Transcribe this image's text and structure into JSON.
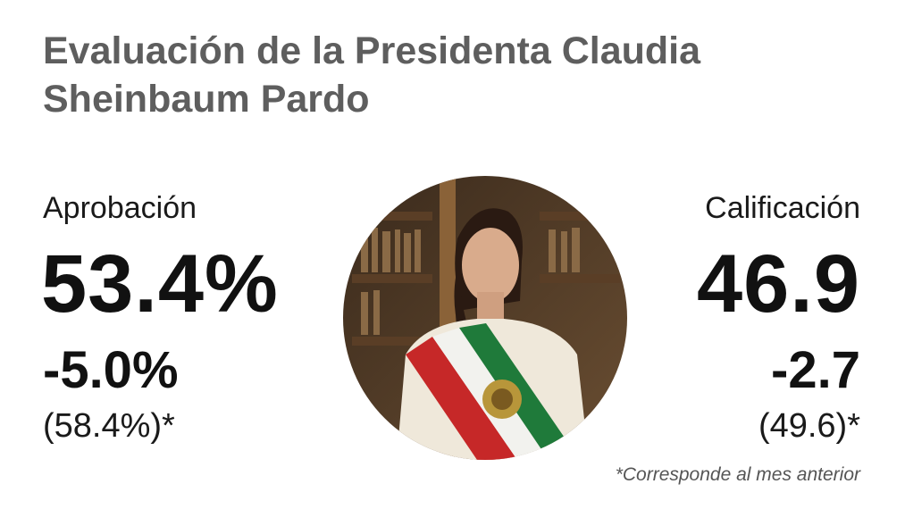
{
  "title": "Evaluación de la Presidenta Claudia Sheinbaum Pardo",
  "approval": {
    "label": "Aprobación",
    "value": "53.4%",
    "change": "-5.0%",
    "previous": "(58.4%)*"
  },
  "rating": {
    "label": "Calificación",
    "value": "46.9",
    "change": "-2.7",
    "previous": "(49.6)*"
  },
  "footnote": "*Corresponde al mes anterior",
  "colors": {
    "title": "#5e5e5e",
    "sash_green": "#1f7a3a",
    "sash_white": "#f2f2ee",
    "sash_red": "#c62828"
  },
  "icons": {
    "photo": "portrait-photo"
  }
}
